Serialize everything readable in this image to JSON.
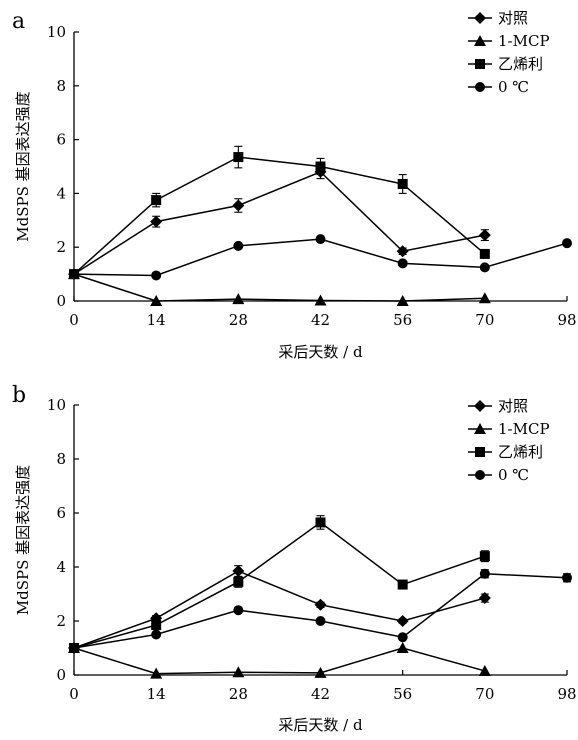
{
  "chart_data": [
    {
      "type": "line",
      "panel_label": "a",
      "xlabel": "采后天数 / d",
      "ylabel": "MdSPS 基因表达强度",
      "x_categories": [
        "0",
        "14",
        "28",
        "42",
        "56",
        "70",
        "98"
      ],
      "ylim": [
        0,
        10
      ],
      "yticks": [
        "0",
        "2",
        "4",
        "6",
        "8",
        "10"
      ],
      "grid": false,
      "legend_position": "top-right",
      "series": [
        {
          "name": "对照",
          "marker": "diamond",
          "x": [
            "0",
            "14",
            "28",
            "42",
            "56",
            "70"
          ],
          "values": [
            1.0,
            2.95,
            3.55,
            4.8,
            1.85,
            2.45
          ],
          "errors": [
            0.05,
            0.2,
            0.25,
            0.25,
            0.12,
            0.2
          ]
        },
        {
          "name": "1-MCP",
          "marker": "triangle",
          "x": [
            "0",
            "14",
            "28",
            "42",
            "56",
            "70"
          ],
          "values": [
            1.0,
            0.0,
            0.07,
            0.02,
            0.0,
            0.1
          ],
          "errors": [
            0.05,
            0.02,
            0.03,
            0.02,
            0.02,
            0.05
          ]
        },
        {
          "name": "乙烯利",
          "marker": "square",
          "x": [
            "0",
            "14",
            "28",
            "42",
            "56",
            "70"
          ],
          "values": [
            1.0,
            3.75,
            5.35,
            5.0,
            4.35,
            1.75
          ],
          "errors": [
            0.05,
            0.25,
            0.4,
            0.3,
            0.35,
            0.1
          ]
        },
        {
          "name": "0 ℃",
          "marker": "circle",
          "x": [
            "0",
            "14",
            "28",
            "42",
            "56",
            "70",
            "98"
          ],
          "values": [
            1.0,
            0.95,
            2.05,
            2.3,
            1.4,
            1.25,
            2.15
          ],
          "errors": [
            0.05,
            0.05,
            0.08,
            0.08,
            0.05,
            0.05,
            0.08
          ]
        }
      ]
    },
    {
      "type": "line",
      "panel_label": "b",
      "xlabel": "采后天数 / d",
      "ylabel": "MdSPS 基因表达强度",
      "x_categories": [
        "0",
        "14",
        "28",
        "42",
        "56",
        "70",
        "98"
      ],
      "ylim": [
        0,
        10
      ],
      "yticks": [
        "0",
        "2",
        "4",
        "6",
        "8",
        "10"
      ],
      "grid": false,
      "legend_position": "top-right",
      "series": [
        {
          "name": "对照",
          "marker": "diamond",
          "x": [
            "0",
            "14",
            "28",
            "42",
            "56",
            "70"
          ],
          "values": [
            1.0,
            2.1,
            3.85,
            2.6,
            2.0,
            2.85
          ],
          "errors": [
            0.05,
            0.1,
            0.2,
            0.1,
            0.08,
            0.15
          ]
        },
        {
          "name": "1-MCP",
          "marker": "triangle",
          "x": [
            "0",
            "14",
            "28",
            "42",
            "56",
            "70"
          ],
          "values": [
            1.0,
            0.05,
            0.1,
            0.08,
            1.0,
            0.15
          ],
          "errors": [
            0.05,
            0.02,
            0.03,
            0.02,
            0.05,
            0.03
          ]
        },
        {
          "name": "乙烯利",
          "marker": "square",
          "x": [
            "0",
            "14",
            "28",
            "42",
            "56",
            "70"
          ],
          "values": [
            1.0,
            1.85,
            3.45,
            5.65,
            3.35,
            4.4
          ],
          "errors": [
            0.05,
            0.1,
            0.2,
            0.25,
            0.12,
            0.2
          ]
        },
        {
          "name": "0 ℃",
          "marker": "circle",
          "x": [
            "0",
            "14",
            "28",
            "42",
            "56",
            "70",
            "98"
          ],
          "values": [
            1.0,
            1.5,
            2.4,
            2.0,
            1.4,
            3.75,
            3.6
          ],
          "errors": [
            0.05,
            0.08,
            0.08,
            0.08,
            0.05,
            0.15,
            0.15
          ]
        }
      ]
    }
  ]
}
